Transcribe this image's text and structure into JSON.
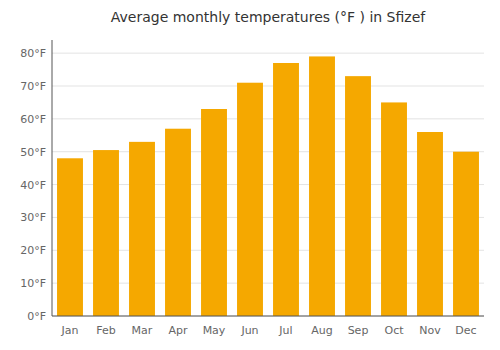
{
  "chart_data": {
    "type": "bar",
    "title": "Average monthly temperatures (°F ) in Sfizef",
    "categories": [
      "Jan",
      "Feb",
      "Mar",
      "Apr",
      "May",
      "Jun",
      "Jul",
      "Aug",
      "Sep",
      "Oct",
      "Nov",
      "Dec"
    ],
    "values": [
      48,
      50.5,
      53,
      57,
      63,
      71,
      77,
      79,
      73,
      65,
      56,
      50
    ],
    "color": "#F5A800",
    "ylim": [
      0,
      84
    ],
    "yticks": [
      {
        "value": 0,
        "label": "0°F"
      },
      {
        "value": 10,
        "label": "10°F"
      },
      {
        "value": 20,
        "label": "20°F"
      },
      {
        "value": 30,
        "label": "30°F"
      },
      {
        "value": 40,
        "label": "40°F"
      },
      {
        "value": 50,
        "label": "50°F"
      },
      {
        "value": 60,
        "label": "60°F"
      },
      {
        "value": 70,
        "label": "70°F"
      },
      {
        "value": 80,
        "label": "80°F"
      }
    ],
    "grid": true
  }
}
